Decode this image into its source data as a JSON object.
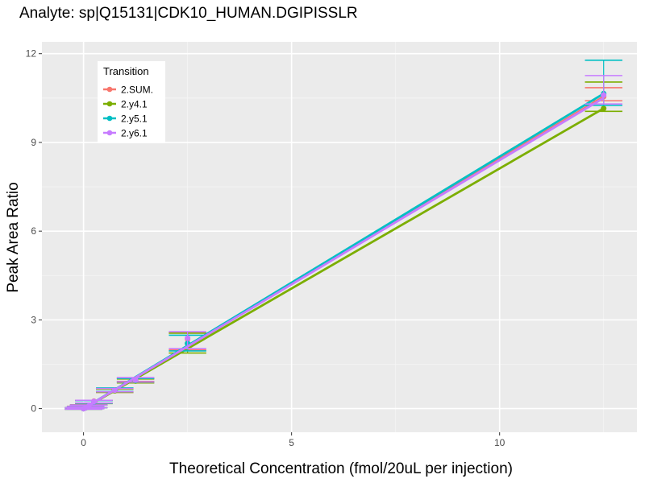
{
  "chart_data": {
    "type": "line",
    "title": "Analyte: sp|Q15131|CDK10_HUMAN.DGIPISSLR",
    "xlabel": "Theoretical Concentration (fmol/20uL per injection)",
    "ylabel": "Peak Area Ratio",
    "xlim": [
      -1.0,
      13.3
    ],
    "ylim": [
      -0.8,
      12.4
    ],
    "x_ticks": [
      0,
      5,
      10
    ],
    "x_tick_labels": [
      "0",
      "5",
      "10"
    ],
    "y_ticks": [
      0,
      3,
      6,
      9,
      12
    ],
    "y_tick_labels": [
      "0",
      "3",
      "6",
      "9",
      "12"
    ],
    "grid": true,
    "legend": {
      "title": "Transition",
      "placement": "top-left"
    },
    "x": [
      0,
      0.05,
      0.125,
      0.25,
      0.75,
      1.25,
      2.5,
      12.5
    ],
    "series": [
      {
        "name": "2.SUM.",
        "color": "#F8766D",
        "slope": 0.844,
        "y": [
          0.0,
          0.03,
          0.08,
          0.25,
          0.63,
          0.98,
          2.35,
          10.55
        ],
        "ymin": [
          -0.02,
          0.0,
          0.03,
          0.18,
          0.55,
          0.92,
          1.98,
          10.41
        ],
        "ymax": [
          0.03,
          0.08,
          0.13,
          0.28,
          0.66,
          1.03,
          2.58,
          10.85
        ]
      },
      {
        "name": "2.y4.1",
        "color": "#7CAE00",
        "slope": 0.812,
        "y": [
          0.0,
          0.03,
          0.08,
          0.22,
          0.6,
          0.93,
          2.2,
          10.15
        ],
        "ymin": [
          -0.02,
          0.0,
          0.03,
          0.17,
          0.55,
          0.87,
          1.88,
          10.05
        ],
        "ymax": [
          0.03,
          0.07,
          0.12,
          0.27,
          0.66,
          1.0,
          2.55,
          11.04
        ]
      },
      {
        "name": "2.y5.1",
        "color": "#00BFC4",
        "slope": 0.852,
        "y": [
          0.0,
          0.03,
          0.08,
          0.23,
          0.63,
          0.95,
          2.2,
          10.65
        ],
        "ymin": [
          -0.02,
          0.0,
          0.03,
          0.18,
          0.58,
          0.9,
          1.95,
          10.25
        ],
        "ymax": [
          0.03,
          0.07,
          0.12,
          0.27,
          0.7,
          1.02,
          2.48,
          11.78
        ]
      },
      {
        "name": "2.y6.1",
        "color": "#C77CFF",
        "slope": 0.84,
        "y": [
          0.0,
          0.03,
          0.08,
          0.24,
          0.62,
          0.97,
          2.38,
          10.6
        ],
        "ymin": [
          -0.02,
          0.0,
          0.03,
          0.19,
          0.57,
          0.9,
          2.03,
          10.3
        ],
        "ymax": [
          0.03,
          0.07,
          0.12,
          0.28,
          0.68,
          1.05,
          2.6,
          11.26
        ]
      }
    ]
  }
}
